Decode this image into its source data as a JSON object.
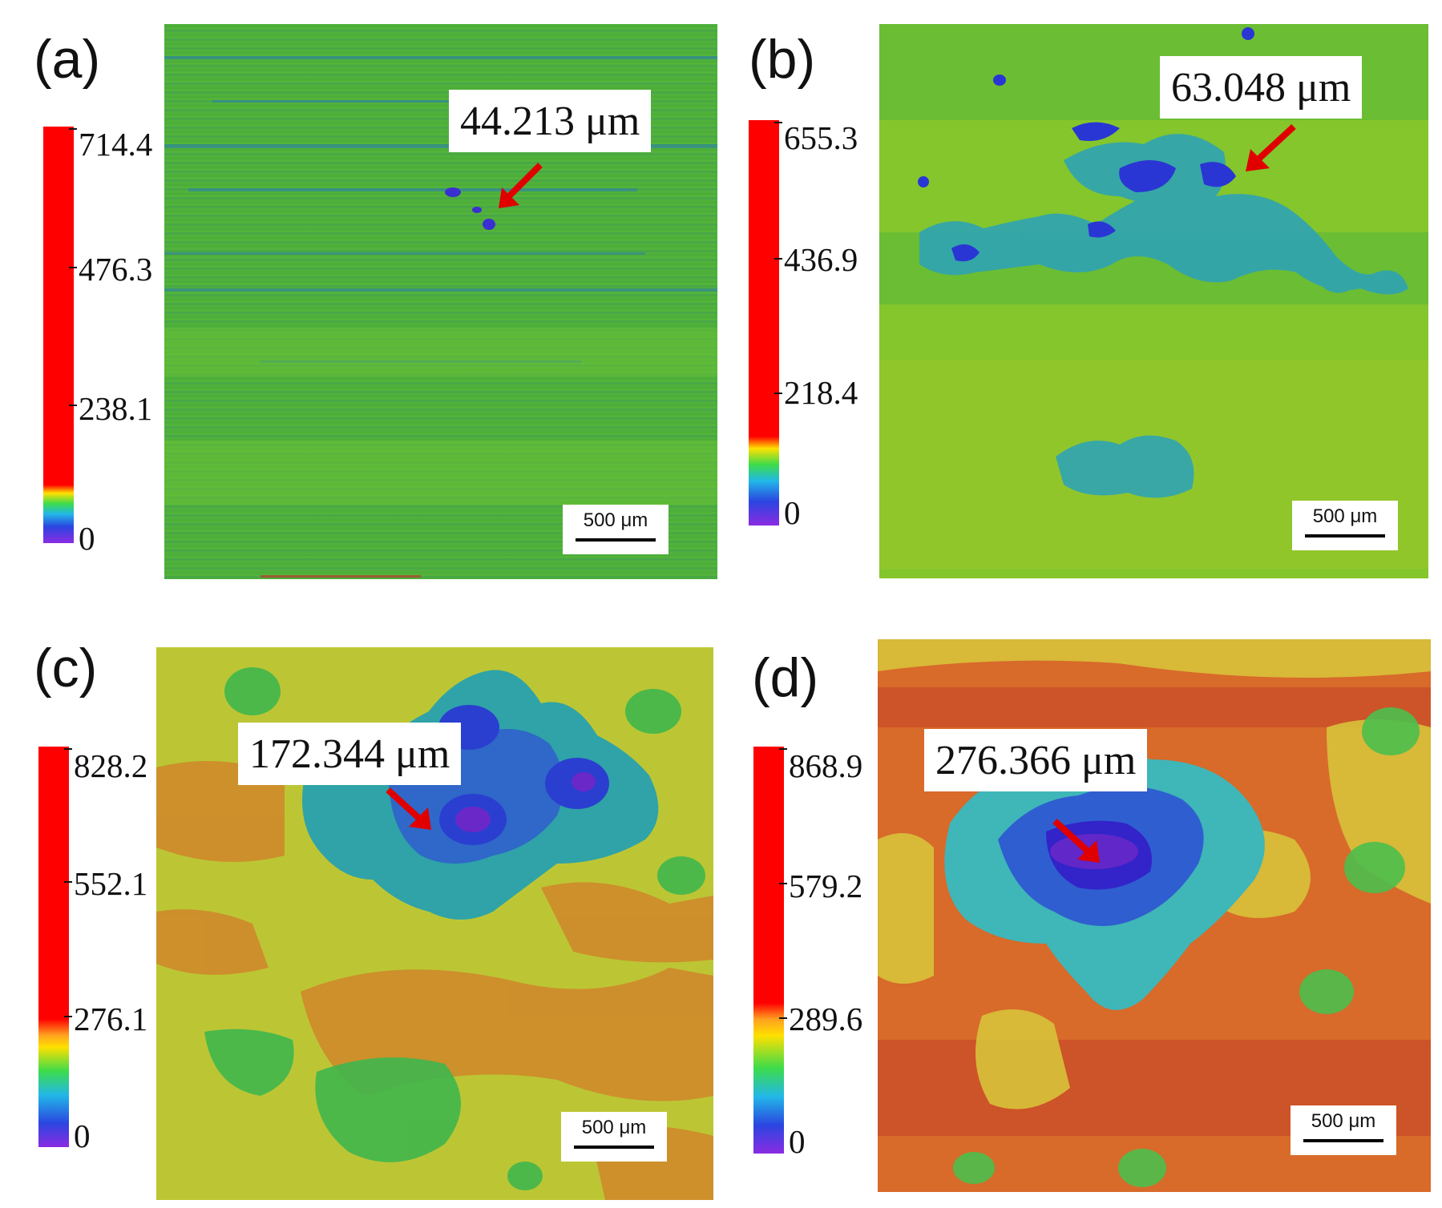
{
  "panels": [
    {
      "letter": "(a)",
      "depth_label": "44.213 μm",
      "scale_label": "500 μm",
      "colorbar_ticks": [
        "714.4",
        "476.3",
        "238.1",
        "0"
      ],
      "colors": {
        "base": "#4fb13a",
        "streak": "#2a7fb0",
        "pit": "#3a2fd0"
      }
    },
    {
      "letter": "(b)",
      "depth_label": "63.048 μm",
      "scale_label": "500 μm",
      "colorbar_ticks": [
        "655.3",
        "436.9",
        "218.4",
        "0"
      ],
      "colors": {
        "base": "#7cc12f",
        "patch": "#2fa3b4",
        "pit": "#2a36d4"
      }
    },
    {
      "letter": "(c)",
      "depth_label": "172.344 μm",
      "scale_label": "500 μm",
      "colorbar_ticks": [
        "828.2",
        "552.1",
        "276.1",
        "0"
      ],
      "colors": {
        "base": "#b8c532",
        "orange": "#d0862a",
        "green": "#3fb64c",
        "pit": "#2a3fd0"
      }
    },
    {
      "letter": "(d)",
      "depth_label": "276.366 μm",
      "scale_label": "500 μm",
      "colorbar_ticks": [
        "868.9",
        "579.2",
        "289.6",
        "0"
      ],
      "colors": {
        "base": "#d9652a",
        "yellow": "#d8c23a",
        "green": "#4cbf4c",
        "pit": "#3224c8"
      }
    }
  ]
}
